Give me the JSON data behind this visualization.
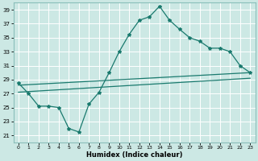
{
  "xlabel": "Humidex (Indice chaleur)",
  "ylabel": "",
  "bg_color": "#cce8e4",
  "grid_color": "#ffffff",
  "line_color": "#1a7a6e",
  "xlim": [
    -0.5,
    23.5
  ],
  "ylim": [
    20,
    40
  ],
  "yticks": [
    21,
    23,
    25,
    27,
    29,
    31,
    33,
    35,
    37,
    39
  ],
  "xticks": [
    0,
    1,
    2,
    3,
    4,
    5,
    6,
    7,
    8,
    9,
    10,
    11,
    12,
    13,
    14,
    15,
    16,
    17,
    18,
    19,
    20,
    21,
    22,
    23
  ],
  "main_line": [
    [
      0,
      28.5
    ],
    [
      1,
      27.0
    ],
    [
      2,
      25.2
    ],
    [
      3,
      25.2
    ],
    [
      4,
      25.0
    ],
    [
      5,
      22.0
    ],
    [
      6,
      21.5
    ],
    [
      7,
      25.5
    ],
    [
      8,
      27.2
    ],
    [
      9,
      30.0
    ],
    [
      10,
      33.0
    ],
    [
      11,
      35.5
    ],
    [
      12,
      37.5
    ],
    [
      13,
      38.0
    ],
    [
      14,
      39.5
    ],
    [
      15,
      37.5
    ],
    [
      16,
      36.2
    ],
    [
      17,
      35.0
    ],
    [
      18,
      34.5
    ],
    [
      19,
      33.5
    ],
    [
      20,
      33.5
    ],
    [
      21,
      33.0
    ],
    [
      22,
      31.0
    ],
    [
      23,
      30.0
    ]
  ],
  "line2": [
    [
      0,
      28.2
    ],
    [
      23,
      30.0
    ]
  ],
  "line3": [
    [
      0,
      27.2
    ],
    [
      23,
      29.2
    ]
  ]
}
